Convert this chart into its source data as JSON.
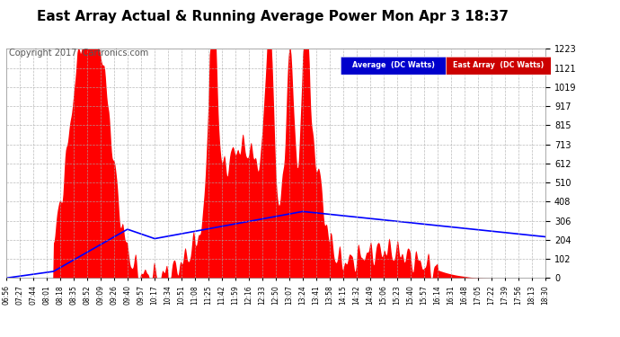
{
  "title": "East Array Actual & Running Average Power Mon Apr 3 18:37",
  "copyright": "Copyright 2017  Cartronics.com",
  "ylabel_right_ticks": [
    0.0,
    101.9,
    203.8,
    305.7,
    407.6,
    509.6,
    611.5,
    713.4,
    815.3,
    917.2,
    1019.1,
    1121.0,
    1222.9
  ],
  "ymax": 1222.9,
  "ymin": 0.0,
  "legend_labels": [
    "Average  (DC Watts)",
    "East Array  (DC Watts)"
  ],
  "background_color": "#ffffff",
  "plot_bg": "#ffffff",
  "grid_color": "#aaaaaa",
  "title_color": "#000000",
  "tick_label_color": "#000000",
  "time_labels": [
    "06:56",
    "07:27",
    "07:44",
    "08:01",
    "08:18",
    "08:35",
    "08:52",
    "09:09",
    "09:26",
    "09:40",
    "09:57",
    "10:17",
    "10:34",
    "10:51",
    "11:08",
    "11:25",
    "11:42",
    "11:59",
    "12:16",
    "12:33",
    "12:50",
    "13:07",
    "13:24",
    "13:41",
    "13:58",
    "14:15",
    "14:32",
    "14:49",
    "15:06",
    "15:23",
    "15:40",
    "15:57",
    "16:14",
    "16:31",
    "16:48",
    "17:05",
    "17:22",
    "17:39",
    "17:56",
    "18:13",
    "18:30"
  ],
  "fill_color": "#ff0000",
  "line_color": "#0000ff",
  "legend_blue_bg": "#0000cc",
  "legend_red_bg": "#cc0000",
  "title_fontsize": 11,
  "copyright_fontsize": 7,
  "tick_fontsize": 7,
  "xtick_fontsize": 5.5
}
